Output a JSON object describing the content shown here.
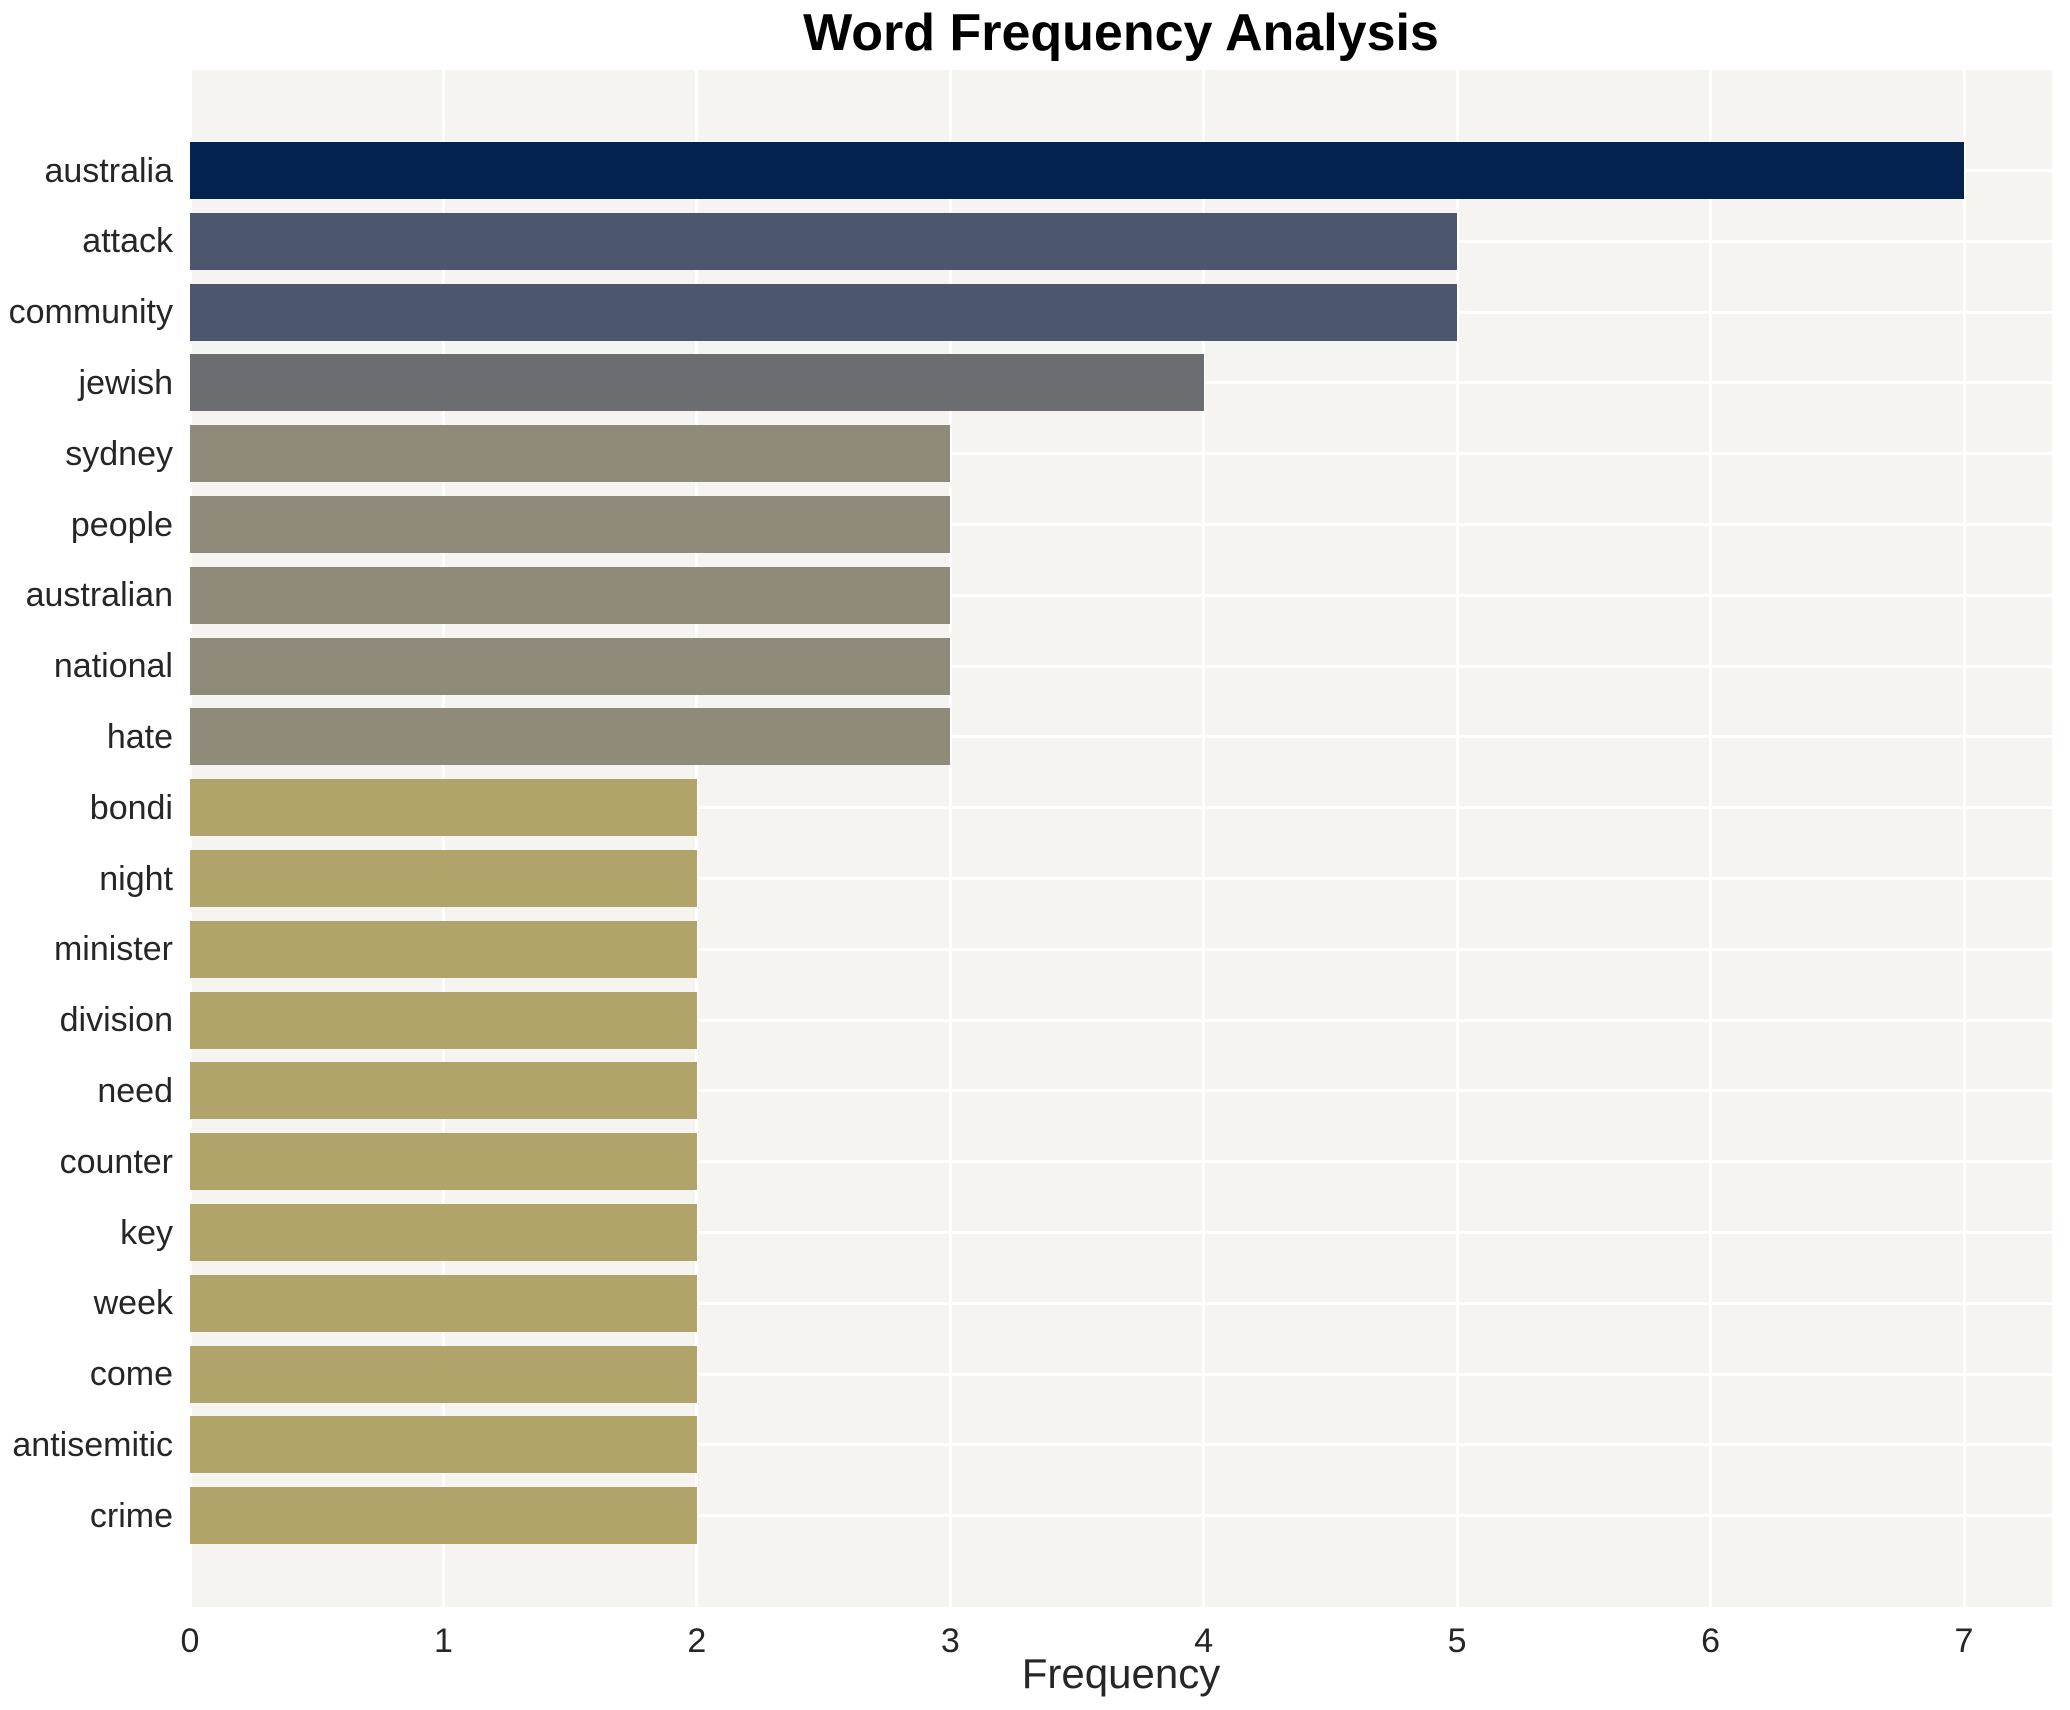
{
  "title": "Word Frequency Analysis",
  "chart_data": {
    "type": "bar",
    "orientation": "horizontal",
    "title": "Word Frequency Analysis",
    "xlabel": "Frequency",
    "ylabel": "",
    "xlim": [
      0,
      7.35
    ],
    "xticks": [
      0,
      1,
      2,
      3,
      4,
      5,
      6,
      7
    ],
    "grid": true,
    "legend": false,
    "plot_background_color": "#f5f4f1",
    "grid_color": "#ffffff",
    "tick_label_color": "#262626",
    "title_color": "#000000",
    "categories": [
      "australia",
      "attack",
      "community",
      "jewish",
      "sydney",
      "people",
      "australian",
      "national",
      "hate",
      "bondi",
      "night",
      "minister",
      "division",
      "need",
      "counter",
      "key",
      "week",
      "come",
      "antisemitic",
      "crime"
    ],
    "values": [
      7,
      5,
      5,
      4,
      3,
      3,
      3,
      3,
      3,
      2,
      2,
      2,
      2,
      2,
      2,
      2,
      2,
      2,
      2,
      2
    ],
    "bar_colors": [
      "#03224d",
      "#4d566f",
      "#4d566f",
      "#6c6d71",
      "#8f8a79",
      "#8f8a79",
      "#8f8a79",
      "#8f8a79",
      "#8f8a79",
      "#b0a46a",
      "#b0a46a",
      "#b0a46a",
      "#b0a46a",
      "#b0a46a",
      "#b0a46a",
      "#b0a46a",
      "#b0a46a",
      "#b0a46a",
      "#b0a46a",
      "#b0a46a"
    ]
  }
}
